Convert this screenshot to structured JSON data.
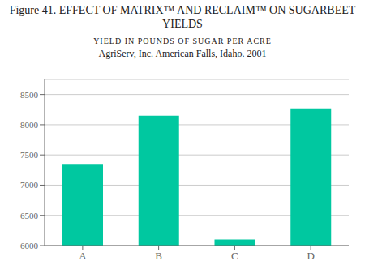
{
  "chart_data": {
    "type": "bar",
    "title": "Figure 41. EFFECT OF MATRIX™ AND RECLAIM™ ON SUGARBEET\nYIELDS",
    "subtitle": [
      "YIELD IN POUNDS OF SUGAR PER ACRE",
      "AgriServ, Inc. American Falls, Idaho. 2001"
    ],
    "categories": [
      "A",
      "B",
      "C",
      "D"
    ],
    "values": [
      7350,
      8150,
      6100,
      8270
    ],
    "color": "#00C8A0",
    "ylim": [
      6000,
      8750
    ],
    "yticks": [
      6000,
      6500,
      7000,
      7500,
      8000,
      8500
    ],
    "grid": true
  }
}
